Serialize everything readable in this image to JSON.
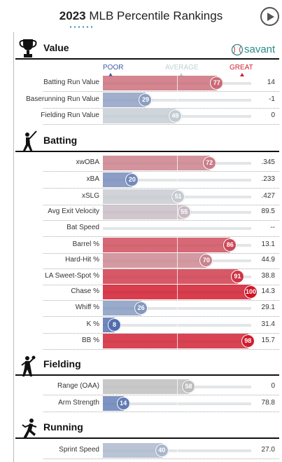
{
  "header": {
    "year": "2023",
    "title_rest": "MLB Percentile Rankings"
  },
  "legend": {
    "poor": "POOR",
    "average": "AVERAGE",
    "great": "GREAT",
    "logo_text": "savant",
    "colors": {
      "poor": "#3b5ba8",
      "average": "#bfcfd6",
      "great": "#d0202e"
    }
  },
  "sections": [
    {
      "key": "value",
      "title": "Value",
      "icon": "trophy-icon"
    },
    {
      "key": "batting",
      "title": "Batting",
      "icon": "batter-icon"
    },
    {
      "key": "fielding",
      "title": "Fielding",
      "icon": "fielder-icon"
    },
    {
      "key": "running",
      "title": "Running",
      "icon": "runner-icon"
    }
  ],
  "chart_data": {
    "type": "bar",
    "title": "2023 MLB Percentile Rankings",
    "xlim": [
      0,
      100
    ],
    "scale_labels": [
      "POOR",
      "AVERAGE",
      "GREAT"
    ],
    "rows": [
      {
        "section": "Value",
        "metric": "Batting Run Value",
        "percentile": 77,
        "value": "14"
      },
      {
        "section": "Value",
        "metric": "Baserunning Run Value",
        "percentile": 29,
        "value": "-1"
      },
      {
        "section": "Value",
        "metric": "Fielding Run Value",
        "percentile": 49,
        "value": "0"
      },
      {
        "section": "Batting",
        "metric": "xwOBA",
        "percentile": 72,
        "value": ".345"
      },
      {
        "section": "Batting",
        "metric": "xBA",
        "percentile": 20,
        "value": ".233"
      },
      {
        "section": "Batting",
        "metric": "xSLG",
        "percentile": 51,
        "value": ".427"
      },
      {
        "section": "Batting",
        "metric": "Avg Exit Velocity",
        "percentile": 55,
        "value": "89.5"
      },
      {
        "section": "Batting",
        "metric": "Bat Speed",
        "percentile": null,
        "value": "--"
      },
      {
        "section": "Batting",
        "metric": "Barrel %",
        "percentile": 86,
        "value": "13.1"
      },
      {
        "section": "Batting",
        "metric": "Hard-Hit %",
        "percentile": 70,
        "value": "44.9"
      },
      {
        "section": "Batting",
        "metric": "LA Sweet-Spot %",
        "percentile": 91,
        "value": "38.8"
      },
      {
        "section": "Batting",
        "metric": "Chase %",
        "percentile": 100,
        "value": "14.3"
      },
      {
        "section": "Batting",
        "metric": "Whiff %",
        "percentile": 26,
        "value": "29.1"
      },
      {
        "section": "Batting",
        "metric": "K %",
        "percentile": 8,
        "value": "31.4"
      },
      {
        "section": "Batting",
        "metric": "BB %",
        "percentile": 98,
        "value": "15.7"
      },
      {
        "section": "Fielding",
        "metric": "Range (OAA)",
        "percentile": 58,
        "value": "0",
        "neutral": true
      },
      {
        "section": "Fielding",
        "metric": "Arm Strength",
        "percentile": 14,
        "value": "78.8"
      },
      {
        "section": "Running",
        "metric": "Sprint Speed",
        "percentile": 40,
        "value": "27.0"
      }
    ]
  }
}
